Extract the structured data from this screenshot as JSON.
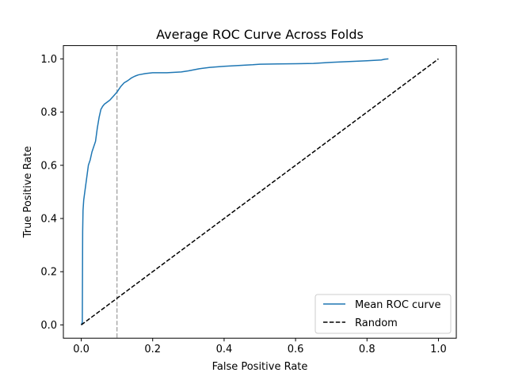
{
  "chart_data": {
    "type": "line",
    "title": "Average ROC Curve Across Folds",
    "xlabel": "False Positive Rate",
    "ylabel": "True Positive Rate",
    "xlim": [
      -0.05,
      1.05
    ],
    "ylim": [
      -0.05,
      1.05
    ],
    "xticks": [
      "0.0",
      "0.2",
      "0.4",
      "0.6",
      "0.8",
      "1.0"
    ],
    "yticks": [
      "0.0",
      "0.2",
      "0.4",
      "0.6",
      "0.8",
      "1.0"
    ],
    "grid": false,
    "legend_position": "lower-right",
    "series": [
      {
        "name": "Mean ROC curve",
        "color": "#1f77b4",
        "style": "solid",
        "x": [
          0.0,
          0.003,
          0.004,
          0.005,
          0.007,
          0.01,
          0.015,
          0.02,
          0.025,
          0.03,
          0.035,
          0.04,
          0.045,
          0.05,
          0.055,
          0.06,
          0.065,
          0.07,
          0.08,
          0.09,
          0.1,
          0.11,
          0.12,
          0.13,
          0.14,
          0.15,
          0.16,
          0.18,
          0.2,
          0.24,
          0.28,
          0.3,
          0.33,
          0.36,
          0.4,
          0.45,
          0.48,
          0.5,
          0.55,
          0.6,
          0.65,
          0.7,
          0.75,
          0.8,
          0.84,
          0.85,
          0.86
        ],
        "y": [
          0.0,
          0.01,
          0.35,
          0.43,
          0.47,
          0.5,
          0.55,
          0.6,
          0.62,
          0.65,
          0.67,
          0.69,
          0.74,
          0.78,
          0.81,
          0.822,
          0.83,
          0.835,
          0.845,
          0.86,
          0.875,
          0.895,
          0.91,
          0.918,
          0.928,
          0.935,
          0.94,
          0.945,
          0.948,
          0.948,
          0.951,
          0.955,
          0.963,
          0.968,
          0.972,
          0.976,
          0.978,
          0.98,
          0.981,
          0.982,
          0.983,
          0.987,
          0.99,
          0.993,
          0.996,
          0.999,
          1.0
        ]
      },
      {
        "name": "Random",
        "color": "#000000",
        "style": "dashed",
        "x": [
          0.0,
          1.0
        ],
        "y": [
          0.0,
          1.0
        ]
      }
    ],
    "reference_line": {
      "orientation": "vertical",
      "x": 0.1,
      "color": "#aaaaaa",
      "style": "dashed"
    }
  }
}
